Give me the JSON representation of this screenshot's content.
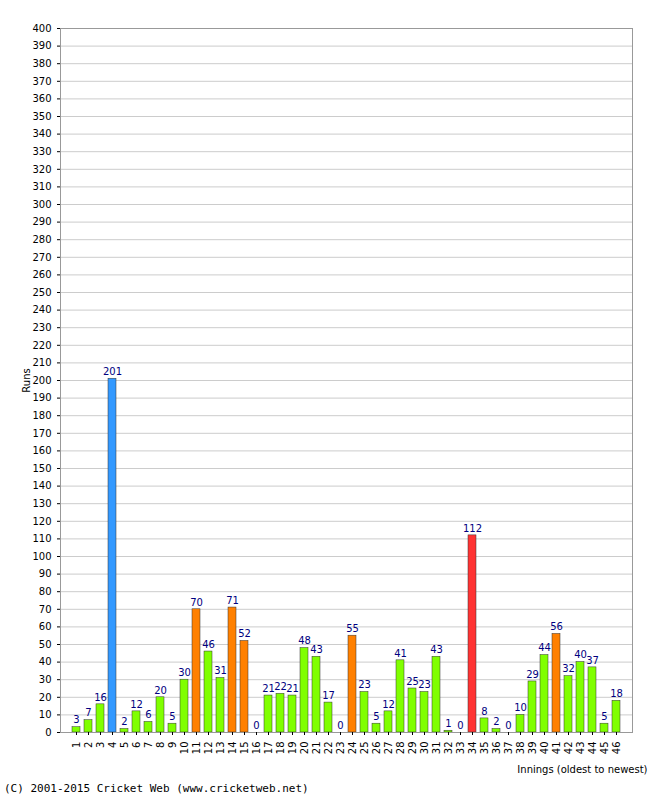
{
  "chart_data": {
    "type": "bar",
    "caption": "(C) 2001-2015 Cricket Web (www.cricketweb.net)",
    "x_label": "Innings (oldest to newest)",
    "y_label": "Runs",
    "categories": [
      "1",
      "2",
      "3",
      "4",
      "5",
      "6",
      "7",
      "8",
      "9",
      "10",
      "11",
      "12",
      "13",
      "14",
      "15",
      "16",
      "17",
      "18",
      "19",
      "20",
      "21",
      "22",
      "23",
      "24",
      "25",
      "26",
      "27",
      "28",
      "29",
      "30",
      "31",
      "32",
      "33",
      "34",
      "35",
      "36",
      "37",
      "38",
      "39",
      "40",
      "41",
      "42",
      "43",
      "44",
      "45",
      "46"
    ],
    "values": [
      3,
      7,
      16,
      201,
      2,
      12,
      6,
      20,
      5,
      30,
      70,
      46,
      31,
      71,
      52,
      0,
      21,
      22,
      21,
      48,
      43,
      17,
      0,
      55,
      23,
      5,
      12,
      41,
      25,
      23,
      43,
      1,
      0,
      112,
      8,
      2,
      0,
      10,
      29,
      44,
      56,
      32,
      40,
      37,
      5,
      18
    ],
    "colors": [
      "#80ff00",
      "#80ff00",
      "#80ff00",
      "#3399ff",
      "#80ff00",
      "#80ff00",
      "#80ff00",
      "#80ff00",
      "#80ff00",
      "#80ff00",
      "#ff8000",
      "#80ff00",
      "#80ff00",
      "#ff8000",
      "#ff8000",
      "#80ff00",
      "#80ff00",
      "#80ff00",
      "#80ff00",
      "#80ff00",
      "#80ff00",
      "#80ff00",
      "#80ff00",
      "#ff8000",
      "#80ff00",
      "#80ff00",
      "#80ff00",
      "#80ff00",
      "#80ff00",
      "#80ff00",
      "#80ff00",
      "#80ff00",
      "#80ff00",
      "#ff3333",
      "#80ff00",
      "#80ff00",
      "#80ff00",
      "#80ff00",
      "#80ff00",
      "#80ff00",
      "#ff8000",
      "#80ff00",
      "#80ff00",
      "#80ff00",
      "#80ff00",
      "#80ff00"
    ],
    "ylim": [
      0,
      400
    ],
    "yticks": [
      0,
      10,
      20,
      30,
      40,
      50,
      60,
      70,
      80,
      90,
      100,
      110,
      120,
      130,
      140,
      150,
      160,
      170,
      180,
      190,
      200,
      210,
      220,
      230,
      240,
      250,
      260,
      270,
      280,
      290,
      300,
      310,
      320,
      330,
      340,
      350,
      360,
      370,
      380,
      390,
      400
    ],
    "grid": true,
    "data_labels": true
  }
}
